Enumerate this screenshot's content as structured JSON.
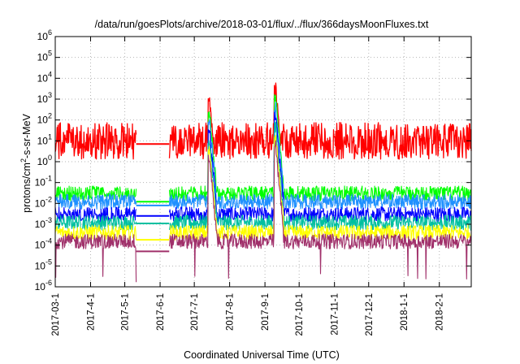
{
  "chart_data": {
    "type": "line",
    "title": "/data/run/goesPlots/archive/2018-03-01/flux/../flux/366daysMoonFluxes.txt",
    "xlabel": "Coordinated Universal Time (UTC)",
    "ylabel_parts": {
      "pre": "protons/cm",
      "sup": "2",
      "post": "-s-sr-MeV"
    },
    "yscale": "log",
    "ylim": [
      1e-06,
      1000000.0
    ],
    "xlim": [
      "2017-03-01",
      "2018-03-01"
    ],
    "grid": true,
    "legend": "none",
    "y_ticks": [
      {
        "base": "10",
        "exp": "-6"
      },
      {
        "base": "10",
        "exp": "-5"
      },
      {
        "base": "10",
        "exp": "-4"
      },
      {
        "base": "10",
        "exp": "-3"
      },
      {
        "base": "10",
        "exp": "-2"
      },
      {
        "base": "10",
        "exp": "-1"
      },
      {
        "base": "10",
        "exp": "0"
      },
      {
        "base": "10",
        "exp": "1"
      },
      {
        "base": "10",
        "exp": "2"
      },
      {
        "base": "10",
        "exp": "3"
      },
      {
        "base": "10",
        "exp": "4"
      },
      {
        "base": "10",
        "exp": "5"
      },
      {
        "base": "10",
        "exp": "6"
      }
    ],
    "x_ticks": [
      "2017-03-1",
      "2017-4-1",
      "2017-5-1",
      "2017-6-1",
      "2017-7-1",
      "2017-8-1",
      "2017-9-1",
      "2017-10-1",
      "2017-11-1",
      "2017-12-1",
      "2018-1-1",
      "2018-2-1"
    ],
    "data_gap": {
      "start": "2017-05-11",
      "end": "2017-06-09"
    },
    "events": [
      {
        "date": "2017-07-14",
        "peak": 600
      },
      {
        "date": "2017-09-10",
        "peak": 3000
      }
    ],
    "series": [
      {
        "color": "#ff0000",
        "baseline": 10,
        "gap_level": 7
      },
      {
        "color": "#00ff00",
        "baseline": 0.03,
        "gap_level": 0.012
      },
      {
        "color": "#1e90ff",
        "baseline": 0.012,
        "gap_level": 0.008
      },
      {
        "color": "#0000ff",
        "baseline": 0.003,
        "gap_level": 0.0025
      },
      {
        "color": "#00c0a0",
        "baseline": 0.0012,
        "gap_level": 0.0011
      },
      {
        "color": "#ffff00",
        "baseline": 0.0004,
        "gap_level": 0.00018
      },
      {
        "color": "#a0306a",
        "baseline": 0.00015,
        "gap_level": 5e-05
      }
    ]
  }
}
